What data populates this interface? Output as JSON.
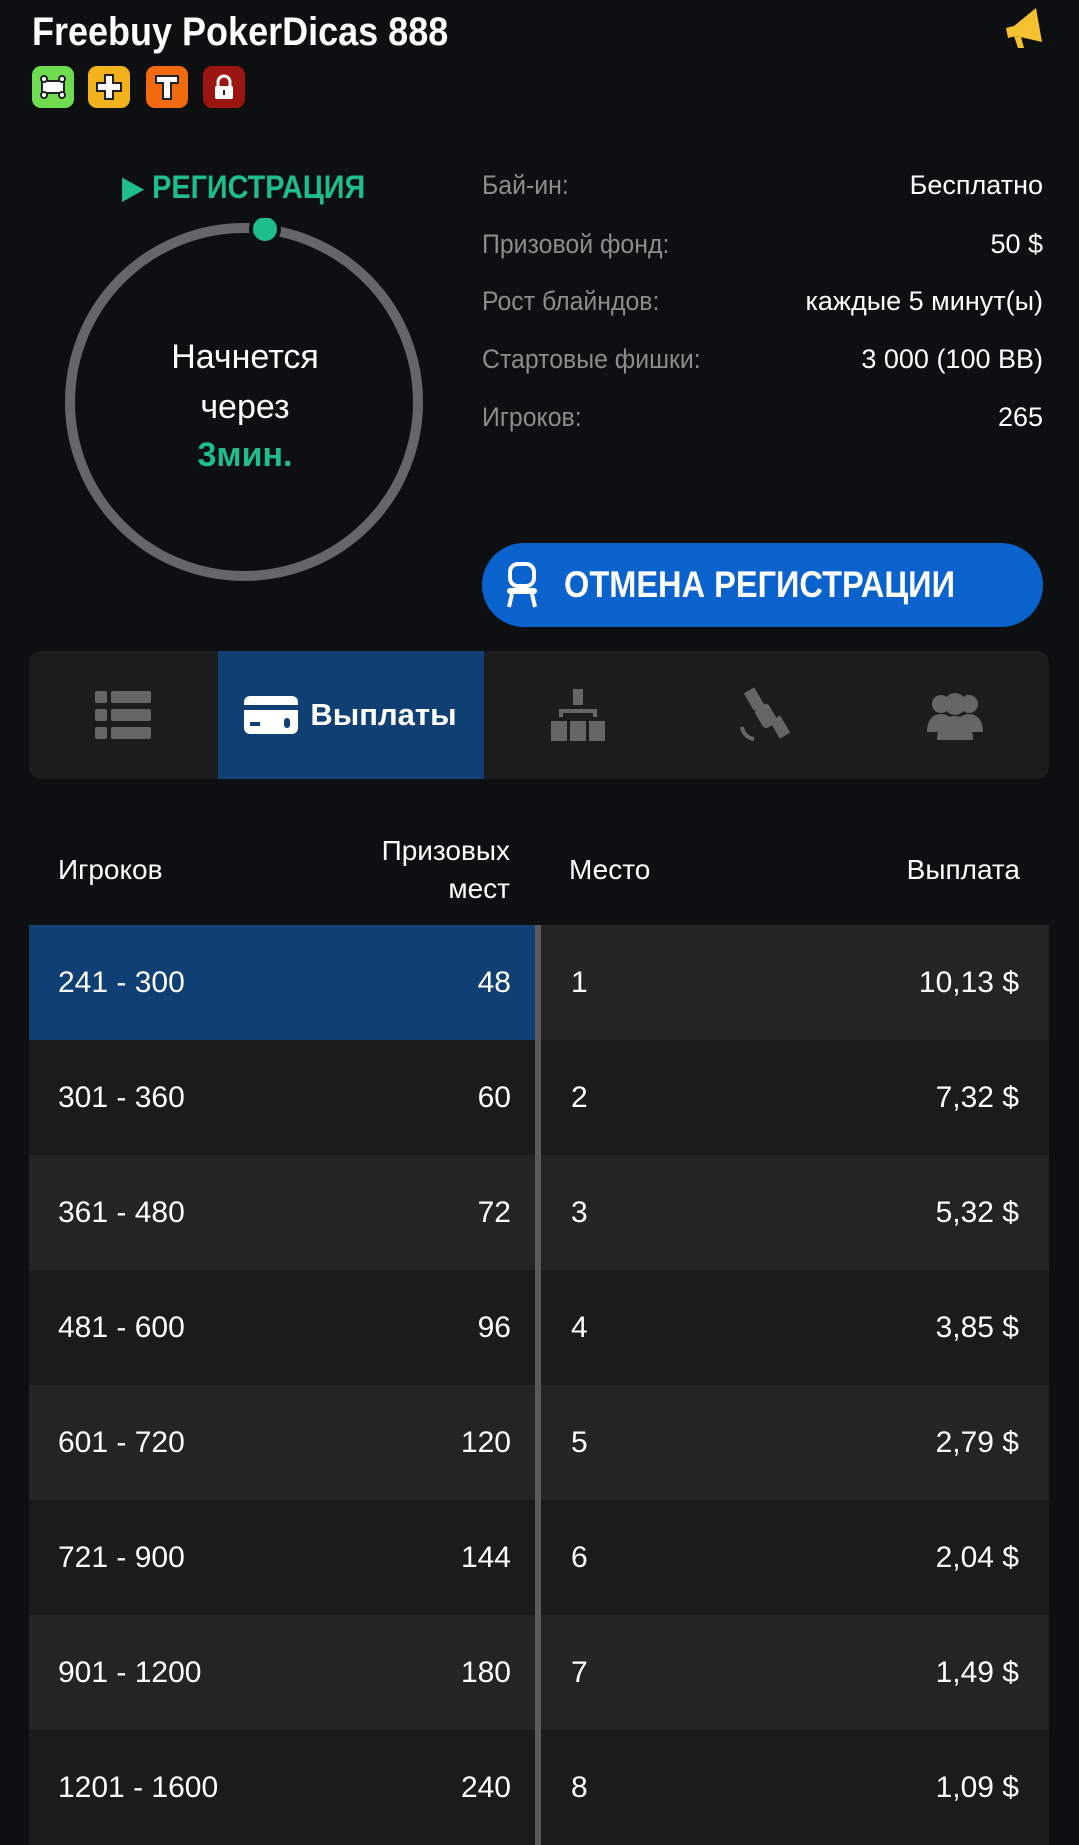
{
  "header": {
    "title": "Freebuy PokerDicas 888",
    "badges": [
      {
        "icon": "turbo-icon",
        "color": "#6fdc4f"
      },
      {
        "icon": "plus-icon",
        "color": "#f2b21c"
      },
      {
        "icon": "t-icon",
        "color": "#f26a0f"
      },
      {
        "icon": "lock-icon",
        "color": "#9c1512"
      }
    ],
    "announce_icon": "megaphone-icon"
  },
  "status": {
    "label": "РЕГИСТРАЦИЯ",
    "line1": "Начнется",
    "line2": "через",
    "time": "3мин.",
    "accent": "#1ebe8a"
  },
  "info": [
    {
      "label": "Бай-ин:",
      "value": "Бесплатно"
    },
    {
      "label": "Призовой фонд:",
      "value": "50 $"
    },
    {
      "label": "Рост блайндов:",
      "value": "каждые 5 минут(ы)"
    },
    {
      "label": "Стартовые фишки:",
      "value": "3 000 (100 BB)"
    },
    {
      "label": "Игроков:",
      "value": "265"
    }
  ],
  "cancel_button": {
    "label": "ОТМЕНА РЕГИСТРАЦИИ",
    "color": "#0a63cc"
  },
  "tabs": [
    {
      "icon": "list-icon"
    },
    {
      "icon": "card-icon",
      "label": "Выплаты",
      "active": true
    },
    {
      "icon": "structure-icon"
    },
    {
      "icon": "satellite-icon"
    },
    {
      "icon": "players-icon"
    }
  ],
  "table": {
    "headers": {
      "players": "Игроков",
      "prize_places_1": "Призовых",
      "prize_places_2": "мест",
      "place": "Место",
      "payout": "Выплата"
    },
    "rows": [
      {
        "players": "241 - 300",
        "places": "48",
        "place": "1",
        "payout": "10,13 $",
        "selected": true
      },
      {
        "players": "301 - 360",
        "places": "60",
        "place": "2",
        "payout": "7,32 $"
      },
      {
        "players": "361 - 480",
        "places": "72",
        "place": "3",
        "payout": "5,32 $"
      },
      {
        "players": "481 - 600",
        "places": "96",
        "place": "4",
        "payout": "3,85 $"
      },
      {
        "players": "601 - 720",
        "places": "120",
        "place": "5",
        "payout": "2,79 $"
      },
      {
        "players": "721 - 900",
        "places": "144",
        "place": "6",
        "payout": "2,04 $"
      },
      {
        "players": "901 - 1200",
        "places": "180",
        "place": "7",
        "payout": "1,49 $"
      },
      {
        "players": "1201 - 1600",
        "places": "240",
        "place": "8",
        "payout": "1,09 $"
      }
    ]
  }
}
